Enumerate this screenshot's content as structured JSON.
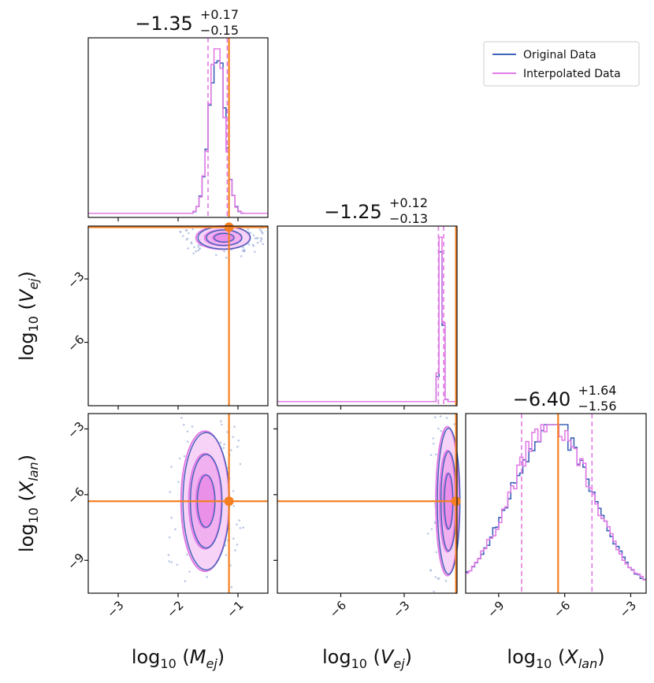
{
  "chart_data": {
    "type": "corner",
    "colors": {
      "original": "#3f63b8",
      "interpolated": "#e27ce6",
      "truth": "#f57f20",
      "fill": "#f0b6f0"
    },
    "legend": {
      "location": "top-right",
      "entries": [
        {
          "label": "Original Data",
          "color": "#3f63b8"
        },
        {
          "label": "Interpolated Data",
          "color": "#e27ce6"
        }
      ]
    },
    "parameters": [
      {
        "key": "mej",
        "base": "log",
        "sub": "10",
        "var": "M",
        "varsub": "ej",
        "range": [
          -3.5,
          -0.5
        ],
        "ticks": [
          -3,
          -2,
          -1
        ],
        "truth": -1.15
      },
      {
        "key": "vej",
        "base": "log",
        "sub": "10",
        "var": "V",
        "varsub": "ej",
        "range": [
          -9.0,
          -0.5
        ],
        "ticks": [
          -6,
          -3
        ],
        "truth": -0.55
      },
      {
        "key": "xlan",
        "base": "log",
        "sub": "10",
        "var": "X",
        "varsub": "lan",
        "range": [
          -10.5,
          -2.3
        ],
        "ticks": [
          -9,
          -6,
          -3
        ],
        "truth": -6.3
      }
    ],
    "titles": [
      {
        "param": "mej",
        "median": "−1.35",
        "plus": "+0.17",
        "minus": "−0.15",
        "quantiles": [
          -1.5,
          -1.35,
          -1.18
        ]
      },
      {
        "param": "vej",
        "median": "−1.25",
        "plus": "+0.12",
        "minus": "−0.13",
        "quantiles": [
          -1.38,
          -1.25,
          -1.13
        ]
      },
      {
        "param": "xlan",
        "median": "−6.40",
        "plus": "+1.64",
        "minus": "−1.56",
        "quantiles": [
          -7.96,
          -6.4,
          -4.76
        ]
      }
    ],
    "histograms": {
      "mej": {
        "center": -1.35,
        "width": 0.13
      },
      "vej": {
        "center": -1.25,
        "width": 0.09
      },
      "xlan": {
        "center": -6.6,
        "width": 1.8
      }
    },
    "contours_2d": [
      {
        "x": "mej",
        "y": "vej",
        "center": [
          -1.25,
          -1.05
        ],
        "spread": [
          0.45,
          0.55
        ]
      },
      {
        "x": "mej",
        "y": "xlan",
        "center": [
          -1.55,
          -6.3
        ],
        "spread": [
          0.4,
          3.2
        ]
      },
      {
        "x": "vej",
        "y": "xlan",
        "center": [
          -0.95,
          -6.3
        ],
        "spread": [
          0.55,
          3.4
        ]
      }
    ]
  }
}
